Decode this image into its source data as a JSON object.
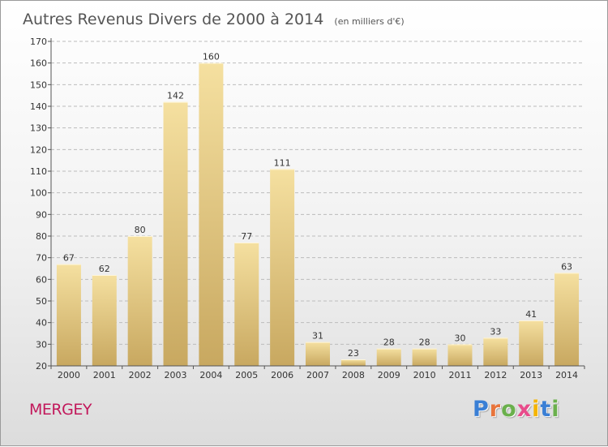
{
  "header": {
    "title": "Autres Revenus Divers de 2000 à 2014",
    "unit": "(en milliers d'€)"
  },
  "footer": {
    "town": "MERGEY",
    "logo_letters": [
      "P",
      "r",
      "o",
      "x",
      "i",
      "t",
      "i"
    ],
    "logo_colors": [
      "#3a7fd5",
      "#e8743b",
      "#6ab04c",
      "#e84c8b",
      "#f5b400",
      "#3a7fd5",
      "#6ab04c"
    ]
  },
  "colors": {
    "bar_top": "#f5e0a0",
    "bar_bottom": "#c8a860",
    "grid": "#bcbcbc",
    "axis": "#555555"
  },
  "chart_data": {
    "type": "bar",
    "title": "Autres Revenus Divers de 2000 à 2014",
    "subtitle": "(en milliers d'€)",
    "categories": [
      "2000",
      "2001",
      "2002",
      "2003",
      "2004",
      "2005",
      "2006",
      "2007",
      "2008",
      "2009",
      "2010",
      "2011",
      "2012",
      "2013",
      "2014"
    ],
    "values": [
      67,
      62,
      80,
      142,
      160,
      77,
      111,
      31,
      23,
      28,
      28,
      30,
      33,
      41,
      63
    ],
    "ylim": [
      20,
      170
    ],
    "yticks": [
      20,
      30,
      40,
      50,
      60,
      70,
      80,
      90,
      100,
      110,
      120,
      130,
      140,
      150,
      160,
      170
    ],
    "grid": true,
    "xlabel": "",
    "ylabel": ""
  }
}
